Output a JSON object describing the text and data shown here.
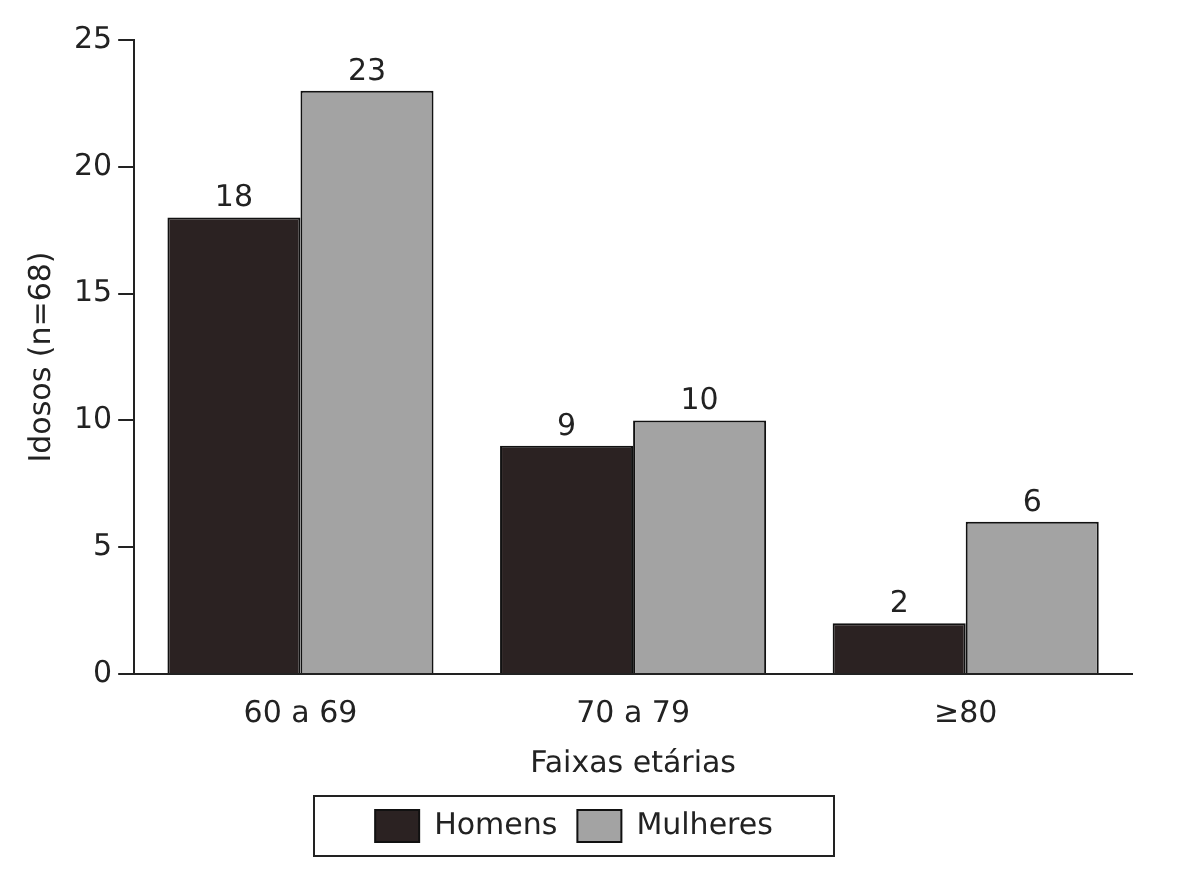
{
  "chart_data": {
    "type": "bar",
    "xlabel": "Faixas etárias",
    "ylabel": "Idosos (n=68)",
    "categories": [
      "60 a 69",
      "70 a 79",
      "≥80"
    ],
    "series": [
      {
        "name": "Homens",
        "color": "#2b2222",
        "values": [
          18,
          9,
          2
        ]
      },
      {
        "name": "Mulheres",
        "color": "#a3a3a3",
        "values": [
          23,
          10,
          6
        ]
      }
    ],
    "ylim": [
      0,
      25
    ],
    "yticks": [
      0,
      5,
      10,
      15,
      20,
      25
    ],
    "grid": false,
    "legend": "bottom",
    "data_labels": true
  }
}
